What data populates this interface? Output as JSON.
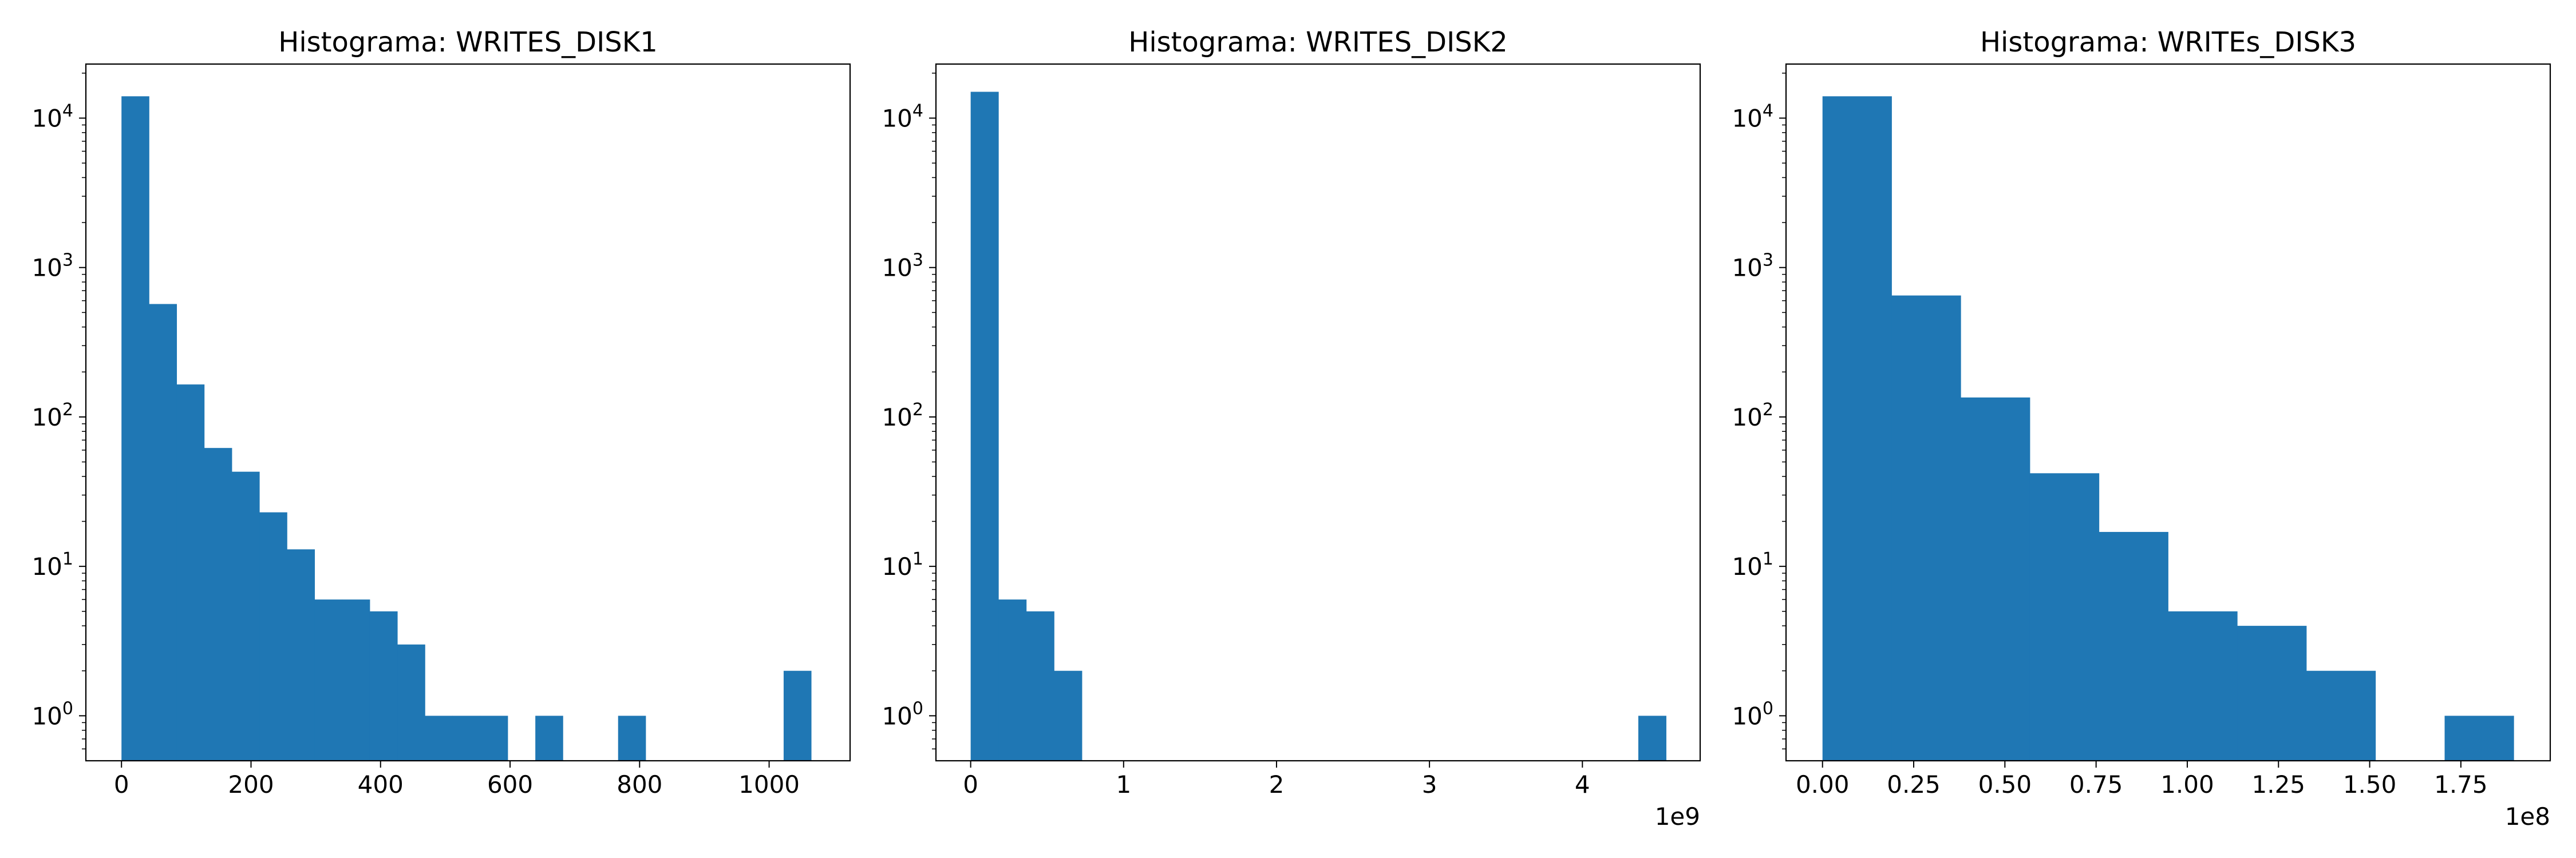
{
  "chart_data": [
    {
      "type": "bar",
      "title": "Histograma: WRITES_DISK1",
      "yscale": "log",
      "xlim": [
        -55,
        1125
      ],
      "ylim": [
        0.5,
        23000
      ],
      "xticks": [
        {
          "value": 0,
          "label": "0"
        },
        {
          "value": 200,
          "label": "200"
        },
        {
          "value": 400,
          "label": "400"
        },
        {
          "value": 600,
          "label": "600"
        },
        {
          "value": 800,
          "label": "800"
        },
        {
          "value": 1000,
          "label": "1000"
        }
      ],
      "yticks": [
        {
          "value": 1,
          "base": "10",
          "exp": "0"
        },
        {
          "value": 10,
          "base": "10",
          "exp": "1"
        },
        {
          "value": 100,
          "base": "10",
          "exp": "2"
        },
        {
          "value": 1000,
          "base": "10",
          "exp": "3"
        },
        {
          "value": 10000,
          "base": "10",
          "exp": "4"
        }
      ],
      "offset_label": "",
      "bin_start": 0,
      "bin_width": 42.6,
      "counts": [
        14000,
        570,
        165,
        62,
        43,
        23,
        13,
        6,
        6,
        5,
        3,
        1,
        1,
        1,
        0,
        1,
        0,
        0,
        1,
        0,
        0,
        0,
        0,
        0,
        2
      ],
      "color": "#1f77b4"
    },
    {
      "type": "bar",
      "title": "Histograma: WRITES_DISK2",
      "yscale": "log",
      "xlim": [
        -227000000.0,
        4770000000.0
      ],
      "ylim": [
        0.5,
        23000
      ],
      "xticks": [
        {
          "value": 0,
          "label": "0"
        },
        {
          "value": 1000000000,
          "label": "1"
        },
        {
          "value": 2000000000,
          "label": "2"
        },
        {
          "value": 3000000000,
          "label": "3"
        },
        {
          "value": 4000000000,
          "label": "4"
        }
      ],
      "yticks": [
        {
          "value": 1,
          "base": "10",
          "exp": "0"
        },
        {
          "value": 10,
          "base": "10",
          "exp": "1"
        },
        {
          "value": 100,
          "base": "10",
          "exp": "2"
        },
        {
          "value": 1000,
          "base": "10",
          "exp": "3"
        },
        {
          "value": 10000,
          "base": "10",
          "exp": "4"
        }
      ],
      "offset_label": "1e9",
      "bin_start": 0,
      "bin_width": 181900000,
      "counts": [
        15000,
        6,
        5,
        2,
        0,
        0,
        0,
        0,
        0,
        0,
        0,
        0,
        0,
        0,
        0,
        0,
        0,
        0,
        0,
        0,
        0,
        0,
        0,
        0,
        1
      ],
      "color": "#1f77b4"
    },
    {
      "type": "bar",
      "title": "Histograma: WRITEs_DISK3",
      "yscale": "log",
      "xlim": [
        -10000000.0,
        199500000.0
      ],
      "ylim": [
        0.5,
        23000
      ],
      "xticks": [
        {
          "value": 0,
          "label": "0.00"
        },
        {
          "value": 25000000,
          "label": "0.25"
        },
        {
          "value": 50000000,
          "label": "0.50"
        },
        {
          "value": 75000000,
          "label": "0.75"
        },
        {
          "value": 100000000,
          "label": "1.00"
        },
        {
          "value": 125000000,
          "label": "1.25"
        },
        {
          "value": 150000000,
          "label": "1.50"
        },
        {
          "value": 175000000,
          "label": "1.75"
        }
      ],
      "yticks": [
        {
          "value": 1,
          "base": "10",
          "exp": "0"
        },
        {
          "value": 10,
          "base": "10",
          "exp": "1"
        },
        {
          "value": 100,
          "base": "10",
          "exp": "2"
        },
        {
          "value": 1000,
          "base": "10",
          "exp": "3"
        },
        {
          "value": 10000,
          "base": "10",
          "exp": "4"
        }
      ],
      "offset_label": "1e8",
      "bin_start": 0,
      "bin_width": 18950000,
      "counts": [
        14000,
        650,
        135,
        42,
        17,
        5,
        4,
        2,
        0,
        1
      ],
      "color": "#1f77b4"
    }
  ]
}
